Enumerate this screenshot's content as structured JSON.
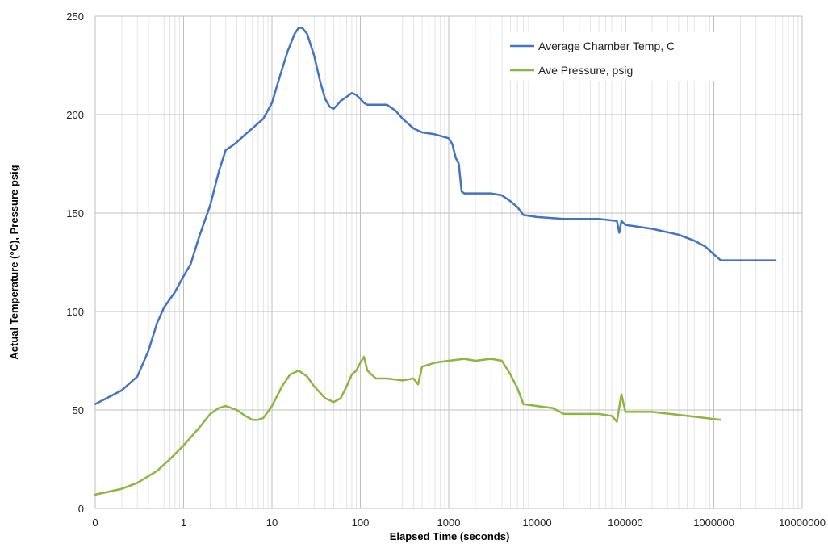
{
  "chart_data": {
    "type": "line",
    "title": "",
    "xlabel": "Elapsed Time (seconds)",
    "ylabel": "Actual Temperature (°C), Pressure psig",
    "x_scale": "log",
    "xlim": [
      0.1,
      10000000
    ],
    "ylim": [
      0,
      250
    ],
    "grid": true,
    "legend_position": "top-right",
    "x_ticks": [
      "0",
      "1",
      "10",
      "100",
      "1000",
      "10000",
      "100000",
      "1000000",
      "10000000"
    ],
    "y_ticks": [
      "0",
      "50",
      "100",
      "150",
      "200",
      "250"
    ],
    "series": [
      {
        "name": "Average Chamber Temp, C",
        "color": "#4472c4",
        "points": [
          [
            0.1,
            53
          ],
          [
            0.2,
            60
          ],
          [
            0.3,
            67
          ],
          [
            0.4,
            80
          ],
          [
            0.5,
            94
          ],
          [
            0.6,
            102
          ],
          [
            0.8,
            110
          ],
          [
            1,
            118
          ],
          [
            1.2,
            124
          ],
          [
            1.5,
            138
          ],
          [
            2,
            154
          ],
          [
            2.5,
            171
          ],
          [
            3,
            182
          ],
          [
            3.5,
            184
          ],
          [
            4,
            186
          ],
          [
            5,
            190
          ],
          [
            6,
            193
          ],
          [
            8,
            198
          ],
          [
            10,
            206
          ],
          [
            12,
            218
          ],
          [
            15,
            232
          ],
          [
            18,
            241
          ],
          [
            20,
            244
          ],
          [
            22,
            244
          ],
          [
            25,
            241
          ],
          [
            30,
            230
          ],
          [
            35,
            217
          ],
          [
            40,
            208
          ],
          [
            45,
            204
          ],
          [
            50,
            203
          ],
          [
            55,
            205
          ],
          [
            60,
            207
          ],
          [
            70,
            209
          ],
          [
            80,
            211
          ],
          [
            90,
            210
          ],
          [
            100,
            208
          ],
          [
            110,
            206
          ],
          [
            120,
            205
          ],
          [
            150,
            205
          ],
          [
            200,
            205
          ],
          [
            250,
            202
          ],
          [
            300,
            198
          ],
          [
            400,
            193
          ],
          [
            500,
            191
          ],
          [
            700,
            190
          ],
          [
            1000,
            188
          ],
          [
            1100,
            185
          ],
          [
            1200,
            178
          ],
          [
            1300,
            175
          ],
          [
            1400,
            161
          ],
          [
            1500,
            160
          ],
          [
            2000,
            160
          ],
          [
            3000,
            160
          ],
          [
            4000,
            159
          ],
          [
            5000,
            156
          ],
          [
            6000,
            153
          ],
          [
            7000,
            149
          ],
          [
            10000,
            148
          ],
          [
            20000,
            147
          ],
          [
            50000,
            147
          ],
          [
            80000,
            146
          ],
          [
            85000,
            140
          ],
          [
            90000,
            146
          ],
          [
            100000,
            144
          ],
          [
            200000,
            142
          ],
          [
            400000,
            139
          ],
          [
            600000,
            136
          ],
          [
            800000,
            133
          ],
          [
            1000000,
            129
          ],
          [
            1200000,
            126
          ],
          [
            2000000,
            126
          ],
          [
            3000000,
            126
          ],
          [
            5000000,
            126
          ]
        ]
      },
      {
        "name": "Ave Pressure, psig",
        "color": "#8db63f",
        "points": [
          [
            0.1,
            7
          ],
          [
            0.2,
            10
          ],
          [
            0.3,
            13
          ],
          [
            0.5,
            19
          ],
          [
            0.7,
            25
          ],
          [
            1,
            32
          ],
          [
            1.5,
            41
          ],
          [
            2,
            48
          ],
          [
            2.5,
            51
          ],
          [
            3,
            52
          ],
          [
            4,
            50
          ],
          [
            5,
            47
          ],
          [
            6,
            45
          ],
          [
            7,
            45
          ],
          [
            8,
            46
          ],
          [
            10,
            52
          ],
          [
            13,
            62
          ],
          [
            16,
            68
          ],
          [
            20,
            70
          ],
          [
            25,
            67
          ],
          [
            30,
            62
          ],
          [
            40,
            56
          ],
          [
            50,
            54
          ],
          [
            60,
            56
          ],
          [
            70,
            62
          ],
          [
            80,
            68
          ],
          [
            90,
            70
          ],
          [
            100,
            74
          ],
          [
            110,
            77
          ],
          [
            120,
            70
          ],
          [
            150,
            66
          ],
          [
            200,
            66
          ],
          [
            300,
            65
          ],
          [
            400,
            66
          ],
          [
            450,
            63
          ],
          [
            500,
            72
          ],
          [
            700,
            74
          ],
          [
            1000,
            75
          ],
          [
            1500,
            76
          ],
          [
            2000,
            75
          ],
          [
            3000,
            76
          ],
          [
            4000,
            75
          ],
          [
            5000,
            68
          ],
          [
            6000,
            61
          ],
          [
            7000,
            53
          ],
          [
            10000,
            52
          ],
          [
            15000,
            51
          ],
          [
            20000,
            48
          ],
          [
            50000,
            48
          ],
          [
            70000,
            47
          ],
          [
            80000,
            44
          ],
          [
            90000,
            58
          ],
          [
            100000,
            49
          ],
          [
            200000,
            49
          ],
          [
            500000,
            47
          ],
          [
            1200000,
            45
          ]
        ]
      }
    ]
  }
}
